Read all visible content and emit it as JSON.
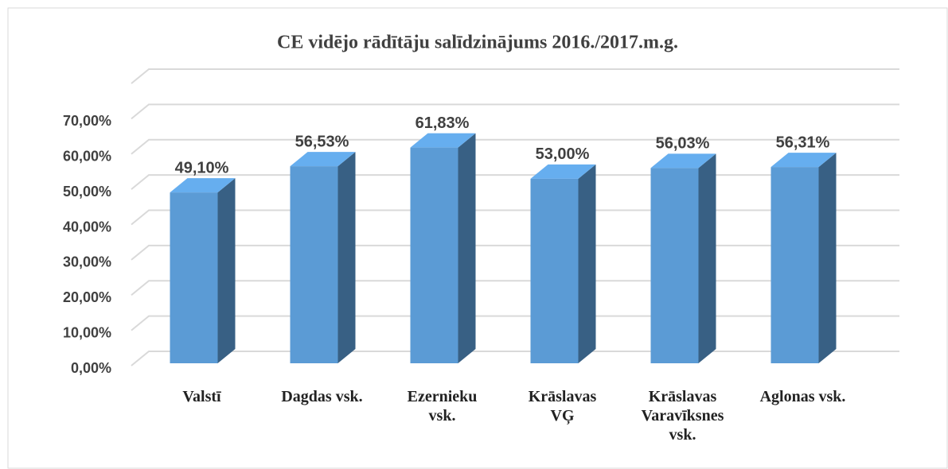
{
  "chart_data": {
    "type": "bar3d",
    "title": "CE vidējo rādītāju salīdzinājums 2016./2017.m.g.",
    "categories": [
      "Valstī",
      "Dagdas vsk.",
      "Ezernieku vsk.",
      "Krāslavas VĢ",
      "Krāslavas Varavīksnes vsk.",
      "Aglonas vsk."
    ],
    "values": [
      49.1,
      56.53,
      61.83,
      53.0,
      56.03,
      56.31
    ],
    "value_labels": [
      "49,10%",
      "56,53%",
      "61,83%",
      "53,00%",
      "56,03%",
      "56,31%"
    ],
    "color": "#5b9bd5",
    "ylim": [
      0,
      80
    ],
    "yticks": [
      {
        "value": 0,
        "label": "0,00%"
      },
      {
        "value": 10,
        "label": "10,00%"
      },
      {
        "value": 20,
        "label": "20,00%"
      },
      {
        "value": 30,
        "label": "30,00%"
      },
      {
        "value": 40,
        "label": "40,00%"
      },
      {
        "value": 50,
        "label": "50,00%"
      },
      {
        "value": 60,
        "label": "60,00%"
      },
      {
        "value": 70,
        "label": "70,00%"
      }
    ],
    "grid": true
  }
}
